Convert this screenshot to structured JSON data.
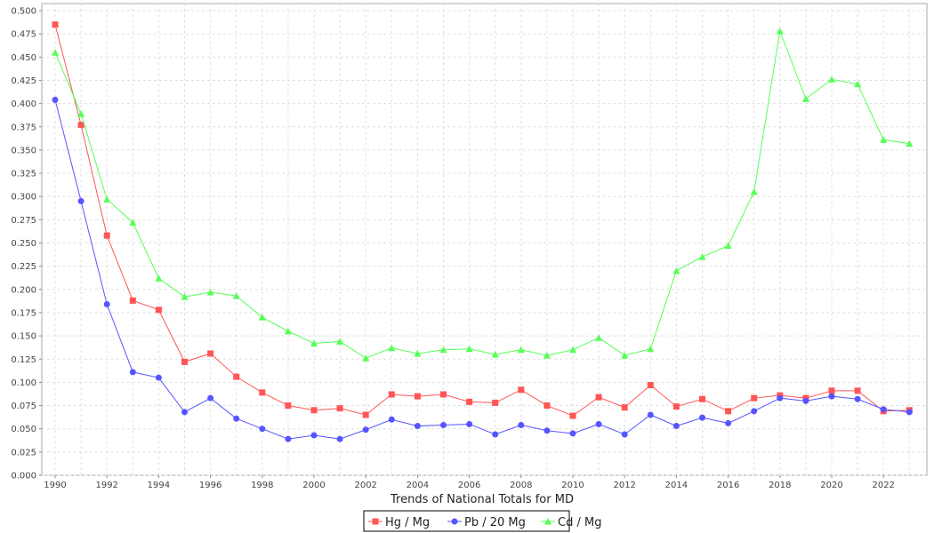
{
  "chart_data": {
    "type": "line",
    "title": "",
    "xlabel": "Trends of National Totals for MD",
    "ylabel": "",
    "xlim": [
      1989.5,
      2023.7
    ],
    "ylim": [
      0,
      0.5
    ],
    "grid": true,
    "legend_position": "bottom",
    "x": [
      1990,
      1991,
      1992,
      1993,
      1994,
      1995,
      1996,
      1997,
      1998,
      1999,
      2000,
      2001,
      2002,
      2003,
      2004,
      2005,
      2006,
      2007,
      2008,
      2009,
      2010,
      2011,
      2012,
      2013,
      2014,
      2015,
      2016,
      2017,
      2018,
      2019,
      2020,
      2021,
      2022,
      2023
    ],
    "x_ticks": [
      "1990",
      "1992",
      "1994",
      "1996",
      "1998",
      "2000",
      "2002",
      "2004",
      "2006",
      "2008",
      "2010",
      "2012",
      "2014",
      "2016",
      "2018",
      "2020",
      "2022"
    ],
    "y_ticks": [
      "0.000",
      "0.025",
      "0.050",
      "0.075",
      "0.100",
      "0.125",
      "0.150",
      "0.175",
      "0.200",
      "0.225",
      "0.250",
      "0.275",
      "0.300",
      "0.325",
      "0.350",
      "0.375",
      "0.400",
      "0.425",
      "0.450",
      "0.475",
      "0.500"
    ],
    "series": [
      {
        "name": "Hg / Mg",
        "color": "#ff5555",
        "marker": "square",
        "values": [
          0.485,
          0.377,
          0.258,
          0.188,
          0.178,
          0.122,
          0.131,
          0.106,
          0.089,
          0.075,
          0.07,
          0.072,
          0.065,
          0.087,
          0.085,
          0.087,
          0.079,
          0.078,
          0.092,
          0.075,
          0.064,
          0.084,
          0.073,
          0.097,
          0.074,
          0.082,
          0.069,
          0.083,
          0.086,
          0.083,
          0.091,
          0.091,
          0.069,
          0.07
        ]
      },
      {
        "name": "Pb / 20 Mg",
        "color": "#5555ff",
        "marker": "circle",
        "values": [
          0.404,
          0.295,
          0.184,
          0.111,
          0.105,
          0.068,
          0.083,
          0.061,
          0.05,
          0.039,
          0.043,
          0.039,
          0.049,
          0.06,
          0.053,
          0.054,
          0.055,
          0.044,
          0.054,
          0.048,
          0.045,
          0.055,
          0.044,
          0.065,
          0.053,
          0.062,
          0.056,
          0.069,
          0.083,
          0.08,
          0.085,
          0.082,
          0.071,
          0.068
        ]
      },
      {
        "name": "Cd / Mg",
        "color": "#55ff55",
        "marker": "triangle",
        "values": [
          0.455,
          0.389,
          0.297,
          0.272,
          0.212,
          0.192,
          0.197,
          0.193,
          0.17,
          0.155,
          0.142,
          0.144,
          0.126,
          0.137,
          0.131,
          0.135,
          0.136,
          0.13,
          0.135,
          0.129,
          0.135,
          0.148,
          0.129,
          0.136,
          0.22,
          0.235,
          0.247,
          0.305,
          0.478,
          0.405,
          0.426,
          0.421,
          0.361,
          0.357
        ]
      }
    ]
  }
}
